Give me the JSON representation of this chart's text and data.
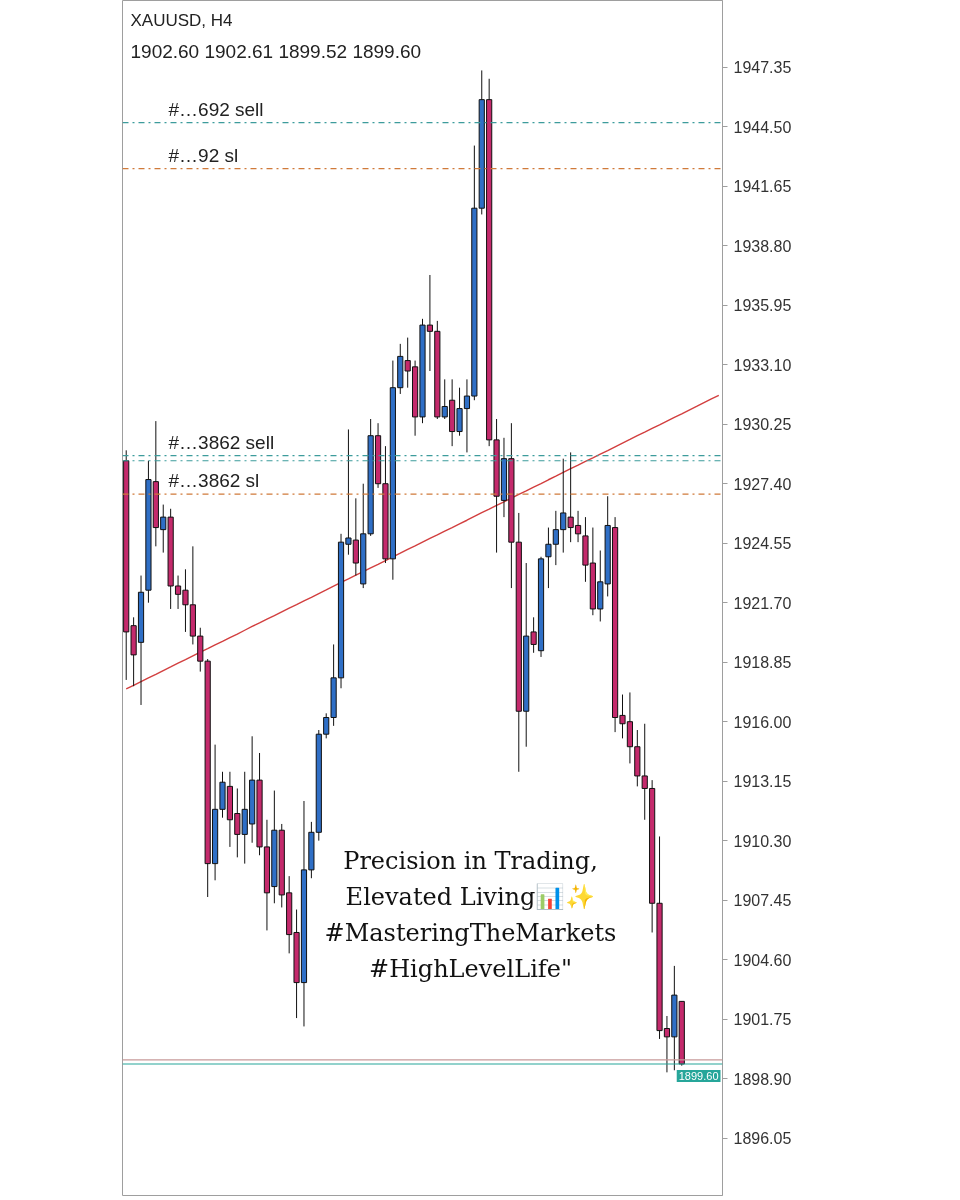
{
  "chart_data": {
    "type": "candlestick",
    "title": "XAUUSD, H4",
    "subtitle": "1902.60 1902.61 1899.52 1899.60",
    "categories": [
      null,
      null,
      null,
      null,
      null,
      null,
      null,
      null,
      null,
      null,
      null,
      null,
      null,
      null,
      null,
      null,
      null,
      null,
      null,
      null,
      null,
      null,
      null,
      null,
      null,
      null,
      null,
      null,
      null,
      null,
      null,
      null,
      null,
      null,
      null,
      null,
      null,
      null,
      null,
      null,
      null,
      null,
      null,
      null,
      null,
      null,
      null,
      null,
      null,
      null,
      null,
      null,
      null,
      null,
      null,
      null,
      null,
      null,
      null,
      null,
      null,
      null,
      null,
      null,
      null,
      null,
      null,
      null,
      null,
      null,
      null,
      null,
      null,
      null,
      null,
      null,
      null,
      null,
      null,
      null,
      null
    ],
    "ohlc": [
      [
        1928.5,
        1929.0,
        1918.0,
        1920.3
      ],
      [
        1920.6,
        1921.0,
        1917.7,
        1919.2
      ],
      [
        1919.8,
        1923.0,
        1916.8,
        1922.2
      ],
      [
        1922.3,
        1928.5,
        1921.7,
        1927.6
      ],
      [
        1927.5,
        1930.4,
        1924.4,
        1925.3
      ],
      [
        1925.2,
        1926.4,
        1924.1,
        1925.8
      ],
      [
        1925.8,
        1926.2,
        1921.4,
        1922.5
      ],
      [
        1922.5,
        1923.0,
        1921.4,
        1922.1
      ],
      [
        1922.3,
        1923.3,
        1920.3,
        1921.6
      ],
      [
        1921.6,
        1924.4,
        1919.7,
        1920.1
      ],
      [
        1920.1,
        1920.5,
        1918.4,
        1918.9
      ],
      [
        1918.9,
        1919.0,
        1907.6,
        1909.2
      ],
      [
        1909.2,
        1914.9,
        1908.4,
        1911.8
      ],
      [
        1911.8,
        1913.6,
        1911.4,
        1913.1
      ],
      [
        1912.9,
        1913.6,
        1910.0,
        1911.3
      ],
      [
        1911.6,
        1912.8,
        1909.5,
        1910.6
      ],
      [
        1910.6,
        1913.6,
        1909.2,
        1911.8
      ],
      [
        1911.1,
        1915.3,
        1910.2,
        1913.2
      ],
      [
        1913.2,
        1914.5,
        1909.6,
        1910.0
      ],
      [
        1910.0,
        1911.3,
        1906.0,
        1907.8
      ],
      [
        1908.1,
        1912.7,
        1907.3,
        1910.8
      ],
      [
        1910.8,
        1911.1,
        1907.1,
        1907.7
      ],
      [
        1907.8,
        1908.6,
        1904.9,
        1905.8
      ],
      [
        1905.9,
        1907.0,
        1901.8,
        1903.5
      ],
      [
        1903.5,
        1912.2,
        1901.4,
        1908.9
      ],
      [
        1908.9,
        1911.2,
        1908.5,
        1910.7
      ],
      [
        1910.7,
        1915.6,
        1910.3,
        1915.4
      ],
      [
        1915.4,
        1916.4,
        1915.2,
        1916.2
      ],
      [
        1916.2,
        1919.7,
        1915.8,
        1918.1
      ],
      [
        1918.1,
        1925.0,
        1917.6,
        1924.6
      ],
      [
        1924.5,
        1930.0,
        1924.0,
        1924.8
      ],
      [
        1924.7,
        1926.7,
        1923.0,
        1923.6
      ],
      [
        1922.6,
        1927.4,
        1922.4,
        1925.0
      ],
      [
        1925.0,
        1930.5,
        1924.9,
        1929.7
      ],
      [
        1929.7,
        1930.3,
        1927.2,
        1927.4
      ],
      [
        1927.4,
        1929.2,
        1923.6,
        1923.8
      ],
      [
        1923.8,
        1933.3,
        1922.8,
        1932.0
      ],
      [
        1932.0,
        1934.1,
        1931.7,
        1933.5
      ],
      [
        1933.3,
        1934.4,
        1932.0,
        1932.8
      ],
      [
        1933.0,
        1933.3,
        1929.7,
        1930.6
      ],
      [
        1930.6,
        1935.3,
        1930.3,
        1935.0
      ],
      [
        1935.0,
        1937.4,
        1932.8,
        1934.7
      ],
      [
        1934.7,
        1935.2,
        1930.5,
        1930.6
      ],
      [
        1930.6,
        1932.4,
        1930.5,
        1931.1
      ],
      [
        1931.4,
        1932.4,
        1929.2,
        1929.9
      ],
      [
        1929.9,
        1932.0,
        1929.7,
        1931.0
      ],
      [
        1931.0,
        1932.4,
        1928.9,
        1931.6
      ],
      [
        1931.6,
        1943.6,
        1931.4,
        1940.6
      ],
      [
        1940.6,
        1947.2,
        1940.3,
        1945.8
      ],
      [
        1945.8,
        1946.8,
        1929.2,
        1929.5
      ],
      [
        1929.5,
        1930.5,
        1924.1,
        1926.8
      ],
      [
        1926.6,
        1929.6,
        1925.8,
        1928.6
      ],
      [
        1928.6,
        1930.3,
        1922.4,
        1924.6
      ],
      [
        1924.6,
        1926.0,
        1913.6,
        1916.5
      ],
      [
        1916.5,
        1923.6,
        1914.8,
        1920.1
      ],
      [
        1920.3,
        1921.0,
        1919.3,
        1919.7
      ],
      [
        1919.4,
        1923.9,
        1919.1,
        1923.8
      ],
      [
        1923.9,
        1925.3,
        1922.4,
        1924.5
      ],
      [
        1924.5,
        1926.1,
        1923.5,
        1925.2
      ],
      [
        1925.2,
        1928.6,
        1924.1,
        1926.0
      ],
      [
        1925.8,
        1928.9,
        1924.6,
        1925.3
      ],
      [
        1925.4,
        1926.1,
        1924.6,
        1925.0
      ],
      [
        1924.9,
        1925.8,
        1922.7,
        1923.5
      ],
      [
        1923.6,
        1925.3,
        1921.1,
        1921.4
      ],
      [
        1921.4,
        1924.2,
        1920.8,
        1922.7
      ],
      [
        1922.6,
        1926.8,
        1922.0,
        1925.4
      ],
      [
        1925.3,
        1925.8,
        1915.5,
        1916.2
      ],
      [
        1916.3,
        1917.3,
        1915.2,
        1915.9
      ],
      [
        1916.0,
        1917.4,
        1914.0,
        1914.8
      ],
      [
        1914.8,
        1915.6,
        1912.9,
        1913.4
      ],
      [
        1913.4,
        1915.9,
        1911.3,
        1912.8
      ],
      [
        1912.8,
        1913.2,
        1905.9,
        1907.3
      ],
      [
        1907.3,
        1910.5,
        1900.8,
        1901.2
      ],
      [
        1901.3,
        1901.9,
        1899.2,
        1900.9
      ],
      [
        1900.9,
        1904.3,
        1899.3,
        1902.9
      ],
      [
        1902.6,
        1902.61,
        1899.52,
        1899.6
      ],
      null,
      null,
      null,
      null,
      null
    ],
    "colors": [
      "#c42a6c",
      "#c42a6c",
      "#2f6fc6",
      "#2f6fc6",
      "#c42a6c",
      "#2f6fc6",
      "#c42a6c",
      "#c42a6c",
      "#c42a6c",
      "#c42a6c",
      "#c42a6c",
      "#c42a6c",
      "#2f6fc6",
      "#2f6fc6",
      "#c42a6c",
      "#c42a6c",
      "#2f6fc6",
      "#2f6fc6",
      "#c42a6c",
      "#c42a6c",
      "#2f6fc6",
      "#c42a6c",
      "#c42a6c",
      "#c42a6c",
      "#2f6fc6",
      "#2f6fc6",
      "#2f6fc6",
      "#2f6fc6",
      "#2f6fc6",
      "#2f6fc6",
      "#2f6fc6",
      "#c42a6c",
      "#2f6fc6",
      "#2f6fc6",
      "#c42a6c",
      "#c42a6c",
      "#2f6fc6",
      "#2f6fc6",
      "#c42a6c",
      "#c42a6c",
      "#2f6fc6",
      "#c42a6c",
      "#c42a6c",
      "#2f6fc6",
      "#c42a6c",
      "#2f6fc6",
      "#2f6fc6",
      "#2f6fc6",
      "#2f6fc6",
      "#c42a6c",
      "#c42a6c",
      "#2f6fc6",
      "#c42a6c",
      "#c42a6c",
      "#2f6fc6",
      "#c42a6c",
      "#2f6fc6",
      "#2f6fc6",
      "#2f6fc6",
      "#2f6fc6",
      "#c42a6c",
      "#c42a6c",
      "#c42a6c",
      "#c42a6c",
      "#2f6fc6",
      "#2f6fc6",
      "#c42a6c",
      "#c42a6c",
      "#c42a6c",
      "#c42a6c",
      "#c42a6c",
      "#c42a6c",
      "#c42a6c",
      "#c42a6c",
      "#2f6fc6",
      "#c42a6c",
      null,
      null,
      null,
      null,
      null
    ],
    "series": [
      {
        "type": "line",
        "color": "#d23f3f",
        "values": [
          1917.57,
          1917.74,
          1917.92,
          1918.1,
          1918.27,
          1918.45,
          1918.62,
          1918.8,
          1918.97,
          1919.15,
          1919.33,
          1919.5,
          1919.68,
          1919.85,
          1920.03,
          1920.2,
          1920.38,
          1920.56,
          1920.73,
          1920.91,
          1921.08,
          1921.26,
          1921.44,
          1921.61,
          1921.79,
          1921.96,
          1922.14,
          1922.31,
          1922.49,
          1922.67,
          1922.84,
          1923.02,
          1923.19,
          1923.37,
          1923.54,
          1923.72,
          1923.9,
          1924.07,
          1924.25,
          1924.42,
          1924.6,
          1924.78,
          1924.95,
          1925.13,
          1925.3,
          1925.48,
          1925.65,
          1925.83,
          1926.01,
          1926.18,
          1926.36,
          1926.53,
          1926.71,
          1926.89,
          1927.06,
          1927.24,
          1927.41,
          1927.59,
          1927.76,
          1927.94,
          1928.12,
          1928.29,
          1928.47,
          1928.64,
          1928.82,
          1928.99,
          1929.17,
          1929.35,
          1929.52,
          1929.7,
          1929.87,
          1930.05,
          1930.22,
          1930.4,
          1930.58,
          1930.75,
          1930.93,
          1931.1,
          1931.28,
          1931.46,
          1931.63
        ]
      }
    ],
    "ylim": [
      1893.3,
      1950.55
    ],
    "yticks": [
      1947.35,
      {
        "value": 1944.5,
        "label": "1944.50"
      },
      1941.65,
      {
        "value": 1938.8,
        "label": "1938.80"
      },
      1935.95,
      {
        "value": 1933.1,
        "label": "1933.10"
      },
      1930.25,
      {
        "value": 1927.4,
        "label": "1927.40"
      },
      1924.55,
      {
        "value": 1921.7,
        "label": "1921.70"
      },
      1918.85,
      {
        "value": 1916.0,
        "label": "1916.00"
      },
      1913.15,
      {
        "value": 1910.3,
        "label": "1910.30"
      },
      1907.45,
      {
        "value": 1904.6,
        "label": "1904.60"
      },
      1901.75,
      {
        "value": 1898.9,
        "label": "1898.90"
      },
      1896.05
    ],
    "tick_labels": "y",
    "ref_lines": [
      {
        "axis": "y",
        "value": 1944.7,
        "label": "#…692 sell",
        "color": "#3d9c9c",
        "line_style": "dashdot"
      },
      {
        "axis": "y",
        "value": 1942.5,
        "label": "#…92 sl",
        "color": "#d07a3a",
        "line_style": "dashdot"
      },
      {
        "axis": "y",
        "value": 1928.75,
        "label": "#…3862 sell",
        "color": "#3d9c9c",
        "line_style": "dashdot"
      },
      {
        "axis": "y",
        "value": 1928.5,
        "color": "#3d9c9c",
        "line_style": "dashdot"
      },
      {
        "axis": "y",
        "value": 1926.9,
        "label": "#…3862 sl",
        "color": "#d07a3a",
        "line_style": "dashdot"
      },
      {
        "axis": "y",
        "value": 1899.8,
        "color": "#c79a9a",
        "line_style": "solid"
      },
      {
        "axis": "y",
        "value": 1899.6,
        "label": "1899.60",
        "color": "#26a69a",
        "line_style": "solid"
      }
    ],
    "annotations": [
      "Precision in Trading,\nElevated Living📊✨\n#MasteringTheMarkets\n#HighLevelLife\""
    ]
  }
}
